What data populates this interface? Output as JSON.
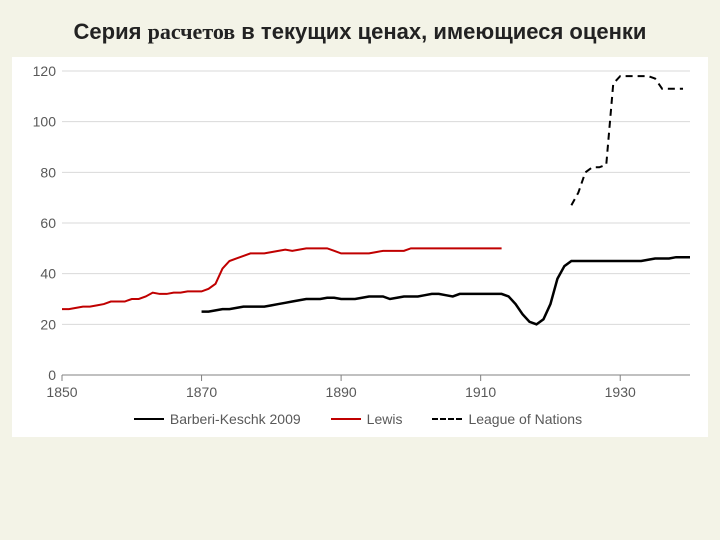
{
  "title_parts": {
    "p1": "Серия ",
    "p2_serif": "расчетов",
    "p3": " в текущих ценах, имеющиеся оценки"
  },
  "chart": {
    "type": "line",
    "background_color": "#ffffff",
    "page_background": "#f3f3e7",
    "grid_color": "#d9d9d9",
    "axis_color": "#808080",
    "tick_font_color": "#595959",
    "tick_font_size": 14,
    "x_axis": {
      "min": 1850,
      "max": 1940,
      "ticks": [
        1850,
        1870,
        1890,
        1910,
        1930
      ]
    },
    "y_axis": {
      "min": 0,
      "max": 120,
      "ticks": [
        0,
        20,
        40,
        60,
        80,
        100,
        120
      ]
    },
    "series": [
      {
        "name": "Barberi-Keschk 2009",
        "color": "#000000",
        "line_width": 2.5,
        "dash": "none",
        "points": [
          [
            1870,
            25
          ],
          [
            1871,
            25
          ],
          [
            1872,
            25.5
          ],
          [
            1873,
            26
          ],
          [
            1874,
            26
          ],
          [
            1875,
            26.5
          ],
          [
            1876,
            27
          ],
          [
            1877,
            27
          ],
          [
            1878,
            27
          ],
          [
            1879,
            27
          ],
          [
            1880,
            27.5
          ],
          [
            1881,
            28
          ],
          [
            1882,
            28.5
          ],
          [
            1883,
            29
          ],
          [
            1884,
            29.5
          ],
          [
            1885,
            30
          ],
          [
            1886,
            30
          ],
          [
            1887,
            30
          ],
          [
            1888,
            30.5
          ],
          [
            1889,
            30.5
          ],
          [
            1890,
            30
          ],
          [
            1891,
            30
          ],
          [
            1892,
            30
          ],
          [
            1893,
            30.5
          ],
          [
            1894,
            31
          ],
          [
            1895,
            31
          ],
          [
            1896,
            31
          ],
          [
            1897,
            30
          ],
          [
            1898,
            30.5
          ],
          [
            1899,
            31
          ],
          [
            1900,
            31
          ],
          [
            1901,
            31
          ],
          [
            1902,
            31.5
          ],
          [
            1903,
            32
          ],
          [
            1904,
            32
          ],
          [
            1905,
            31.5
          ],
          [
            1906,
            31
          ],
          [
            1907,
            32
          ],
          [
            1908,
            32
          ],
          [
            1909,
            32
          ],
          [
            1910,
            32
          ],
          [
            1911,
            32
          ],
          [
            1912,
            32
          ],
          [
            1913,
            32
          ],
          [
            1914,
            31
          ],
          [
            1915,
            28
          ],
          [
            1916,
            24
          ],
          [
            1917,
            21
          ],
          [
            1918,
            20
          ],
          [
            1919,
            22
          ],
          [
            1920,
            28
          ],
          [
            1921,
            38
          ],
          [
            1922,
            43
          ],
          [
            1923,
            45
          ],
          [
            1924,
            45
          ],
          [
            1925,
            45
          ],
          [
            1926,
            45
          ],
          [
            1927,
            45
          ],
          [
            1928,
            45
          ],
          [
            1929,
            45
          ],
          [
            1930,
            45
          ],
          [
            1931,
            45
          ],
          [
            1932,
            45
          ],
          [
            1933,
            45
          ],
          [
            1934,
            45.5
          ],
          [
            1935,
            46
          ],
          [
            1936,
            46
          ],
          [
            1937,
            46
          ],
          [
            1938,
            46.5
          ],
          [
            1939,
            46.5
          ],
          [
            1940,
            46.5
          ]
        ]
      },
      {
        "name": "Lewis",
        "color": "#c00000",
        "line_width": 2,
        "dash": "none",
        "points": [
          [
            1850,
            26
          ],
          [
            1851,
            26
          ],
          [
            1852,
            26.5
          ],
          [
            1853,
            27
          ],
          [
            1854,
            27
          ],
          [
            1855,
            27.5
          ],
          [
            1856,
            28
          ],
          [
            1857,
            29
          ],
          [
            1858,
            29
          ],
          [
            1859,
            29
          ],
          [
            1860,
            30
          ],
          [
            1861,
            30
          ],
          [
            1862,
            31
          ],
          [
            1863,
            32.5
          ],
          [
            1864,
            32
          ],
          [
            1865,
            32
          ],
          [
            1866,
            32.5
          ],
          [
            1867,
            32.5
          ],
          [
            1868,
            33
          ],
          [
            1869,
            33
          ],
          [
            1870,
            33
          ],
          [
            1871,
            34
          ],
          [
            1872,
            36
          ],
          [
            1873,
            42
          ],
          [
            1874,
            45
          ],
          [
            1875,
            46
          ],
          [
            1876,
            47
          ],
          [
            1877,
            48
          ],
          [
            1878,
            48
          ],
          [
            1879,
            48
          ],
          [
            1880,
            48.5
          ],
          [
            1881,
            49
          ],
          [
            1882,
            49.5
          ],
          [
            1883,
            49
          ],
          [
            1884,
            49.5
          ],
          [
            1885,
            50
          ],
          [
            1886,
            50
          ],
          [
            1887,
            50
          ],
          [
            1888,
            50
          ],
          [
            1889,
            49
          ],
          [
            1890,
            48
          ],
          [
            1891,
            48
          ],
          [
            1892,
            48
          ],
          [
            1893,
            48
          ],
          [
            1894,
            48
          ],
          [
            1895,
            48.5
          ],
          [
            1896,
            49
          ],
          [
            1897,
            49
          ],
          [
            1898,
            49
          ],
          [
            1899,
            49
          ],
          [
            1900,
            50
          ],
          [
            1901,
            50
          ],
          [
            1902,
            50
          ],
          [
            1903,
            50
          ],
          [
            1904,
            50
          ],
          [
            1905,
            50
          ],
          [
            1906,
            50
          ],
          [
            1907,
            50
          ],
          [
            1908,
            50
          ],
          [
            1909,
            50
          ],
          [
            1910,
            50
          ],
          [
            1911,
            50
          ],
          [
            1912,
            50
          ],
          [
            1913,
            50
          ]
        ]
      },
      {
        "name": "League of Nations",
        "color": "#000000",
        "line_width": 2,
        "dash": "7,5",
        "points": [
          [
            1923,
            67
          ],
          [
            1924,
            72
          ],
          [
            1925,
            80
          ],
          [
            1926,
            82
          ],
          [
            1927,
            82
          ],
          [
            1928,
            83
          ],
          [
            1929,
            115
          ],
          [
            1930,
            118
          ],
          [
            1931,
            118
          ],
          [
            1932,
            118
          ],
          [
            1933,
            118
          ],
          [
            1934,
            118
          ],
          [
            1935,
            117
          ],
          [
            1936,
            113
          ],
          [
            1937,
            113
          ],
          [
            1938,
            113
          ],
          [
            1939,
            113
          ]
        ]
      }
    ],
    "legend_position": "bottom"
  }
}
